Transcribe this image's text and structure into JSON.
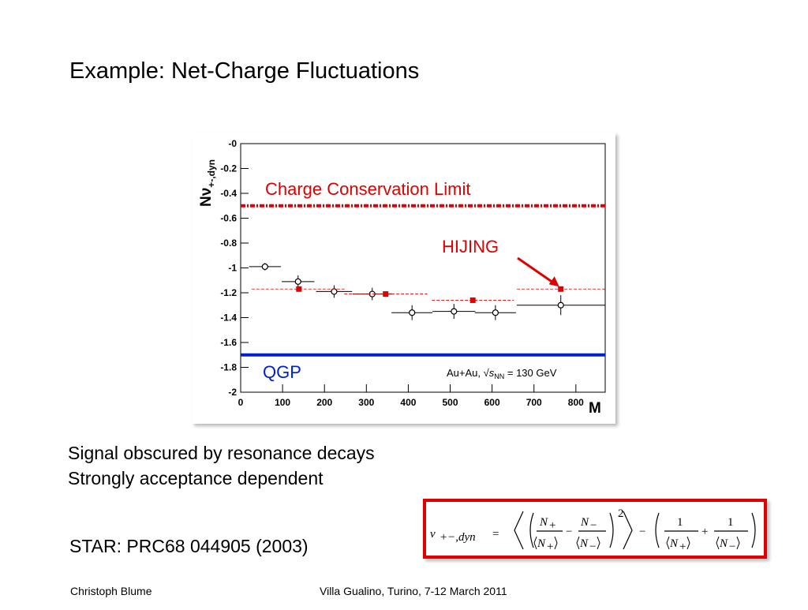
{
  "slide": {
    "title": "Example: Net-Charge Fluctuations",
    "bullets": [
      "Signal obscured by resonance decays",
      "Strongly acceptance dependent"
    ],
    "reference": "STAR: PRC68 044905 (2003)",
    "footer_left": "Christoph Blume",
    "footer_center": "Villa Gualino, Turino, 7-12 March 2011",
    "formula": [
      "ν",
      "+−,dyn",
      "=",
      "N",
      "+",
      "N",
      "+",
      "−",
      "N",
      "−",
      "N",
      "−",
      "2",
      "−",
      "1",
      "N",
      "+",
      "+",
      "1",
      "N",
      "−"
    ]
  },
  "chart_data": {
    "type": "scatter",
    "xlabel": "M",
    "ylabel": [
      "N",
      "ν",
      "+-,dyn"
    ],
    "xlim": [
      0,
      870
    ],
    "ylim": [
      -2,
      0
    ],
    "xticks": [
      0,
      100,
      200,
      300,
      400,
      500,
      600,
      700,
      800
    ],
    "yticks": [
      {
        "value": 0,
        "label": "-0"
      },
      -0.2,
      -0.4,
      -0.6,
      -0.8,
      -1,
      -1.2,
      -1.4,
      -1.6,
      -1.8,
      -2
    ],
    "series": [
      {
        "name": "STAR",
        "color": "#000000",
        "x": [
          58,
          137,
          223,
          314,
          409,
          509,
          608,
          764
        ],
        "values": [
          -0.99,
          -1.11,
          -1.19,
          -1.21,
          -1.36,
          -1.35,
          -1.36,
          -1.3
        ],
        "x_err": [
          38,
          39,
          43,
          47,
          49,
          51,
          49,
          105
        ],
        "y_err": [
          0.03,
          0.05,
          0.05,
          0.05,
          0.06,
          0.06,
          0.06,
          0.08
        ]
      },
      {
        "name": "HIJING",
        "color": "#e00000",
        "x": [
          139,
          346,
          554,
          764
        ],
        "values": [
          -1.17,
          -1.21,
          -1.26,
          -1.17
        ],
        "x_err": [
          113,
          99,
          98,
          105
        ]
      }
    ],
    "reference_lines": [
      {
        "name": "Charge Conservation Limit",
        "value": -0.5,
        "color": "#e00000",
        "style": "dotted"
      },
      {
        "name": "QGP",
        "value": -1.7,
        "color": "#0020d0",
        "style": "solid"
      }
    ],
    "annotation": [
      "Au+Au, √",
      "s",
      "NN",
      " = 130 GeV"
    ]
  }
}
